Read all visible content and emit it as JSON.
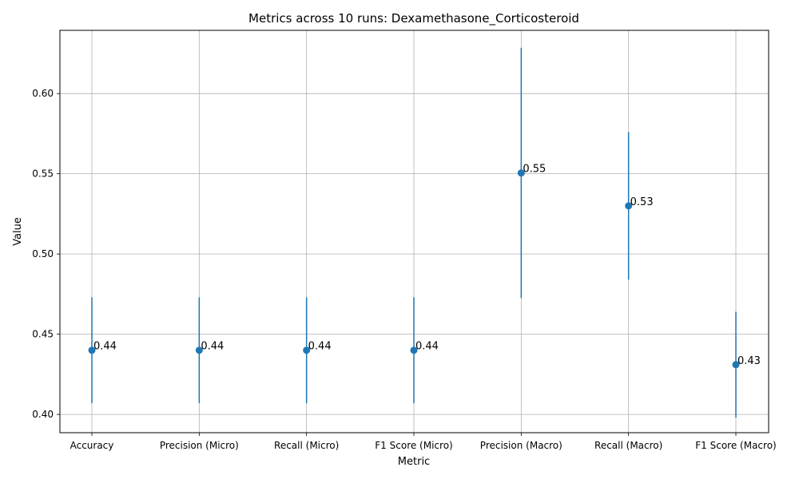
{
  "chart_data": {
    "type": "scatter",
    "title": "Metrics across 10 runs: Dexamethasone_Corticosteroid",
    "xlabel": "Metric",
    "ylabel": "Value",
    "categories": [
      "Accuracy",
      "Precision (Micro)",
      "Recall (Micro)",
      "F1 Score (Micro)",
      "Precision (Macro)",
      "Recall (Macro)",
      "F1 Score (Macro)"
    ],
    "series": [
      {
        "values": [
          0.44,
          0.44,
          0.44,
          0.44,
          0.5505,
          0.53,
          0.431
        ],
        "error": [
          0.033,
          0.033,
          0.033,
          0.033,
          0.078,
          0.046,
          0.033
        ],
        "labels": [
          "0.44",
          "0.44",
          "0.44",
          "0.44",
          "0.55",
          "0.53",
          "0.43"
        ]
      }
    ],
    "ylim": [
      0.3886,
      0.6394
    ],
    "yticks": [
      0.4,
      0.45,
      0.5,
      0.55,
      0.6
    ],
    "yticklabels": [
      "0.40",
      "0.45",
      "0.50",
      "0.55",
      "0.60"
    ],
    "grid": true,
    "legend": "none",
    "color": "#1f77b4"
  }
}
